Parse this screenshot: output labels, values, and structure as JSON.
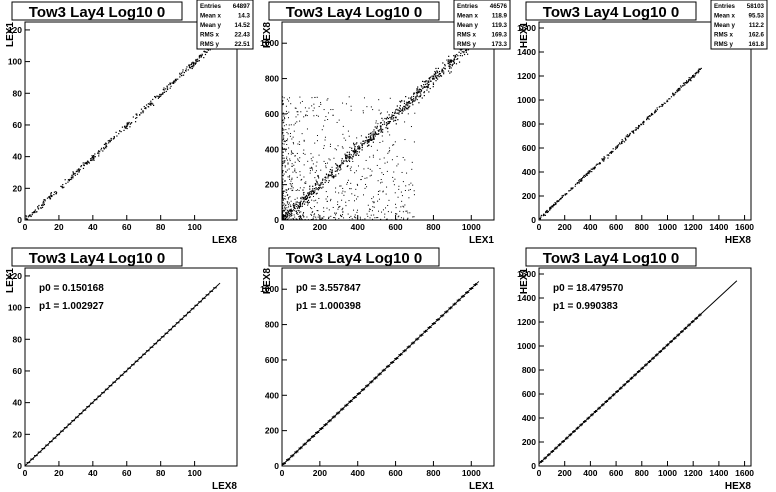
{
  "colors": {
    "background": "#ffffff",
    "ink": "#000000",
    "frame": "#000000"
  },
  "panels": [
    {
      "title": "Tow3 Lay4 Log10 0",
      "chart_data": {
        "type": "scatter",
        "xlabel": "LEX8",
        "ylabel": "LEX1",
        "xlim": [
          0,
          125
        ],
        "ylim": [
          0,
          125
        ],
        "xticks": [
          0,
          20,
          40,
          60,
          80,
          100
        ],
        "yticks": [
          0,
          20,
          40,
          60,
          80,
          100,
          120
        ],
        "grid": false,
        "trend": {
          "slope": 1.0,
          "intercept": 0.15,
          "x_range": [
            0,
            125
          ],
          "spread": 1.0,
          "count": 420
        },
        "stats": [
          {
            "label": "Entries",
            "value": "64897"
          },
          {
            "label": "Mean x",
            "value": "14.3"
          },
          {
            "label": "Mean y",
            "value": "14.52"
          },
          {
            "label": "RMS x",
            "value": "22.43"
          },
          {
            "label": "RMS y",
            "value": "22.51"
          }
        ]
      }
    },
    {
      "title": "Tow3 Lay4 Log10 0",
      "chart_data": {
        "type": "scatter",
        "xlabel": "LEX1",
        "ylabel": "HEX8",
        "xlim": [
          0,
          1120
        ],
        "ylim": [
          0,
          1120
        ],
        "xticks": [
          0,
          200,
          400,
          600,
          800,
          1000
        ],
        "yticks": [
          0,
          200,
          400,
          600,
          800,
          1000
        ],
        "grid": false,
        "trend": {
          "slope": 1.0,
          "intercept": 3.56,
          "x_range": [
            0,
            1020
          ],
          "spread": 20,
          "count": 700
        },
        "cloud": {
          "x_range": [
            0,
            700
          ],
          "y_range": [
            0,
            700
          ],
          "count": 900,
          "concentration": "low-x and low-y"
        },
        "stats": [
          {
            "label": "Entries",
            "value": "46576"
          },
          {
            "label": "Mean x",
            "value": "118.9"
          },
          {
            "label": "Mean y",
            "value": "119.3"
          },
          {
            "label": "RMS x",
            "value": "169.3"
          },
          {
            "label": "RMS y",
            "value": "173.3"
          }
        ]
      }
    },
    {
      "title": "Tow3 Lay4 Log10 0",
      "chart_data": {
        "type": "scatter",
        "xlabel": "HEX8",
        "ylabel": "HEX1",
        "xlim": [
          0,
          1650
        ],
        "ylim": [
          0,
          1650
        ],
        "xticks": [
          0,
          200,
          400,
          600,
          800,
          1000,
          1200,
          1400,
          1600
        ],
        "yticks": [
          0,
          200,
          400,
          600,
          800,
          1000,
          1200,
          1400,
          1600
        ],
        "grid": false,
        "trend": {
          "slope": 0.99,
          "intercept": 18.5,
          "x_range": [
            0,
            1260
          ],
          "spread": 8,
          "count": 340
        },
        "stats": [
          {
            "label": "Entries",
            "value": "58103"
          },
          {
            "label": "Mean x",
            "value": "95.53"
          },
          {
            "label": "Mean y",
            "value": "112.2"
          },
          {
            "label": "RMS x",
            "value": "162.6"
          },
          {
            "label": "RMS y",
            "value": "161.8"
          }
        ]
      }
    },
    {
      "title": "Tow3 Lay4 Log10 0",
      "chart_data": {
        "type": "line",
        "xlabel": "LEX8",
        "ylabel": "LEX1",
        "xlim": [
          0,
          125
        ],
        "ylim": [
          0,
          125
        ],
        "xticks": [
          0,
          20,
          40,
          60,
          80,
          100
        ],
        "yticks": [
          0,
          20,
          40,
          60,
          80,
          100,
          120
        ],
        "grid": false,
        "profile": {
          "x_range": [
            2,
            114
          ],
          "step": 2.2,
          "error": 0.4
        },
        "fit": {
          "p0": 0.150168,
          "p1": 1.002927,
          "x_range": [
            0,
            115
          ]
        },
        "fit_labels": [
          "p0 = 0.150168",
          "p1 = 1.002927"
        ]
      }
    },
    {
      "title": "Tow3 Lay4 Log10 0",
      "chart_data": {
        "type": "line",
        "xlabel": "LEX1",
        "ylabel": "HEX8",
        "xlim": [
          0,
          1120
        ],
        "ylim": [
          0,
          1120
        ],
        "xticks": [
          0,
          200,
          400,
          600,
          800,
          1000
        ],
        "yticks": [
          0,
          200,
          400,
          600,
          800,
          1000
        ],
        "grid": false,
        "profile": {
          "x_range": [
            10,
            1030
          ],
          "step": 22,
          "error": 8
        },
        "fit": {
          "p0": 3.557847,
          "p1": 1.000398,
          "x_range": [
            0,
            1040
          ]
        },
        "fit_labels": [
          "p0 = 3.557847",
          "p1 = 1.000398"
        ]
      }
    },
    {
      "title": "Tow3 Lay4 Log10 0",
      "chart_data": {
        "type": "line",
        "xlabel": "HEX8",
        "ylabel": "HEX1",
        "xlim": [
          0,
          1650
        ],
        "ylim": [
          0,
          1650
        ],
        "xticks": [
          0,
          200,
          400,
          600,
          800,
          1000,
          1200,
          1400,
          1600
        ],
        "yticks": [
          0,
          200,
          400,
          600,
          800,
          1000,
          1200,
          1400,
          1600
        ],
        "grid": false,
        "profile": {
          "x_range": [
            20,
            1260
          ],
          "step": 28,
          "error": 12
        },
        "fit": {
          "p0": 18.47957,
          "p1": 0.990383,
          "x_range": [
            0,
            1540
          ]
        },
        "fit_labels": [
          "p0 = 18.479570",
          "p1 = 0.990383"
        ]
      }
    }
  ]
}
